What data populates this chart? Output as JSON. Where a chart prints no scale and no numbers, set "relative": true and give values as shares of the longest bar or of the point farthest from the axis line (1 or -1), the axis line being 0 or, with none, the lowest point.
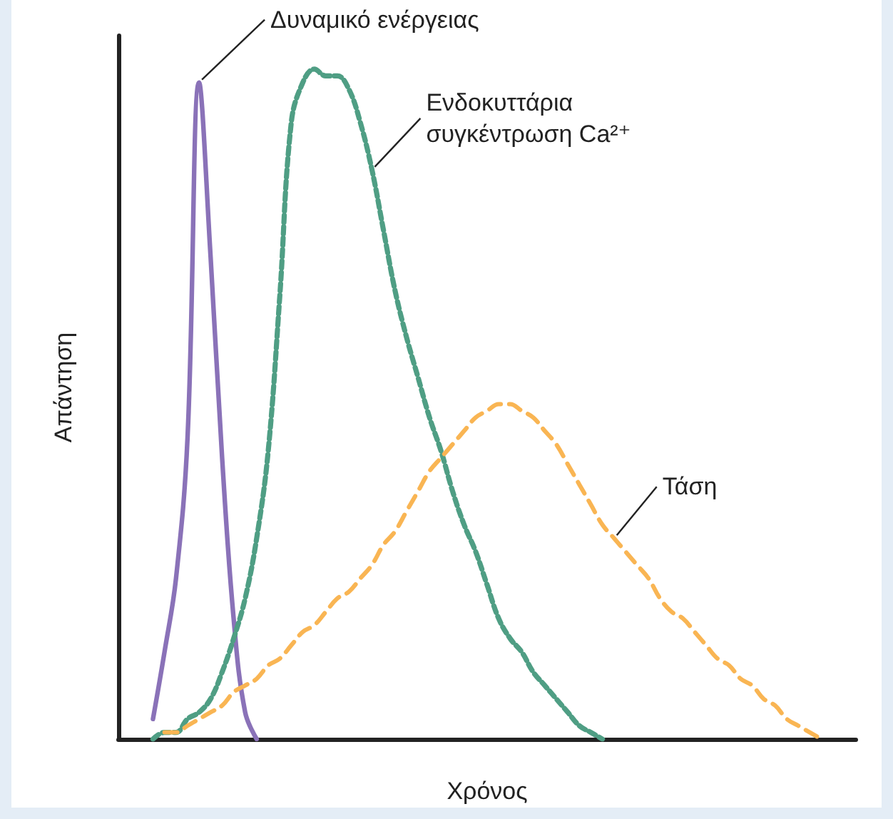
{
  "chart_data": {
    "type": "line",
    "relative": true,
    "xlabel": "Χρόνος",
    "ylabel": "Απάντηση",
    "legend": false,
    "grid": false,
    "categories": [
      null,
      null,
      null,
      null,
      null,
      null,
      null,
      null,
      null,
      null,
      null,
      null,
      null,
      null,
      null,
      null,
      null,
      null,
      null,
      null,
      null,
      null,
      null,
      null,
      null,
      null,
      null,
      null,
      null,
      null,
      null,
      null,
      null,
      null,
      null,
      null,
      null,
      null,
      null,
      null,
      null,
      null,
      null,
      null,
      null,
      null,
      null,
      null,
      null,
      null,
      null,
      null,
      null,
      null,
      null,
      null,
      null,
      null,
      null,
      null,
      null,
      null,
      null,
      null,
      null
    ],
    "series": [
      {
        "name": "Δυναμικό ενέργειας",
        "color": "#8a72b8",
        "line_style": "solid",
        "values": [
          null,
          null,
          null,
          0.03,
          0.13,
          0.24,
          0.45,
          0.98,
          0.72,
          0.42,
          0.18,
          0.04,
          0,
          null,
          null,
          null,
          null,
          null,
          null,
          null,
          null,
          null,
          null,
          null,
          null,
          null,
          null,
          null,
          null,
          null,
          null,
          null,
          null,
          null,
          null,
          null,
          null,
          null,
          null,
          null,
          null,
          null,
          null,
          null,
          null,
          null,
          null,
          null,
          null,
          null,
          null,
          null,
          null,
          null,
          null,
          null,
          null,
          null,
          null,
          null,
          null,
          null,
          null,
          null,
          null
        ]
      },
      {
        "name": "Ενδοκυττάρια συγκέντρωση Ca²⁺",
        "color": "#4f9e84",
        "line_style": "dotted",
        "values": [
          null,
          null,
          null,
          0,
          0.01,
          0.01,
          0.03,
          0.04,
          0.06,
          0.1,
          0.15,
          0.21,
          0.3,
          0.43,
          0.66,
          0.92,
          0.98,
          1,
          0.99,
          0.99,
          0.97,
          0.92,
          0.85,
          0.76,
          0.67,
          0.6,
          0.54,
          0.48,
          0.43,
          0.37,
          0.32,
          0.28,
          0.23,
          0.18,
          0.15,
          0.13,
          0.1,
          0.08,
          0.06,
          0.04,
          0.02,
          0.01,
          0,
          null,
          null,
          null,
          null,
          null,
          null,
          null,
          null,
          null,
          null,
          null,
          null,
          null,
          null,
          null,
          null,
          null,
          null,
          null,
          null,
          null,
          null
        ]
      },
      {
        "name": "Τάση",
        "color": "#f9b553",
        "line_style": "dashed",
        "values": [
          null,
          null,
          null,
          null,
          0.01,
          0.01,
          0.02,
          0.03,
          0.04,
          0.05,
          0.07,
          0.08,
          0.09,
          0.11,
          0.12,
          0.14,
          0.16,
          0.17,
          0.19,
          0.21,
          0.22,
          0.24,
          0.26,
          0.29,
          0.31,
          0.34,
          0.37,
          0.4,
          0.42,
          0.44,
          0.46,
          0.48,
          0.49,
          0.5,
          0.5,
          0.49,
          0.48,
          0.46,
          0.44,
          0.41,
          0.38,
          0.35,
          0.32,
          0.3,
          0.28,
          0.26,
          0.24,
          0.21,
          0.19,
          0.18,
          0.16,
          0.14,
          0.12,
          0.11,
          0.09,
          0.08,
          0.06,
          0.05,
          0.03,
          0.02,
          0.01,
          0,
          null,
          null,
          null
        ]
      }
    ]
  }
}
